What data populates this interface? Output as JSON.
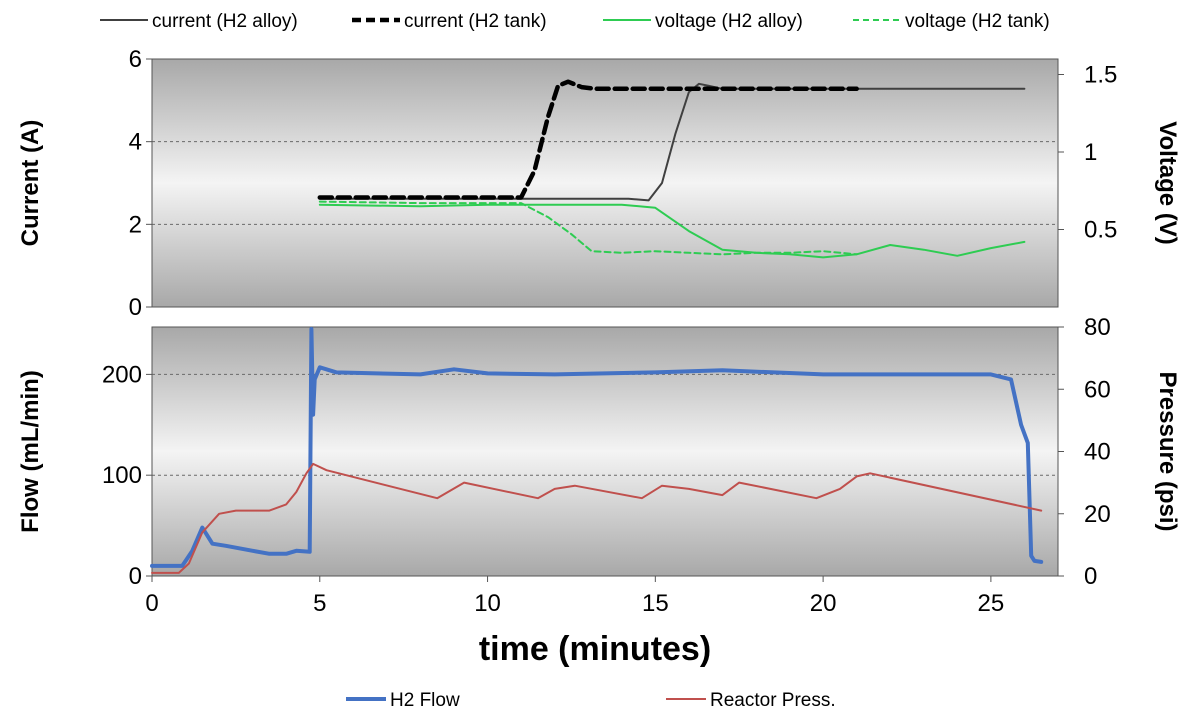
{
  "colors": {
    "current_alloy": "#404040",
    "current_tank": "#000000",
    "voltage": "#2ecc52",
    "flow": "#4472c4",
    "pressure": "#c0504d"
  },
  "chart_data": [
    {
      "type": "line",
      "panel": "top",
      "xlim": [
        0,
        27
      ],
      "ylabel": "Current (A)",
      "ylim": [
        0,
        6
      ],
      "yticks": [
        "0",
        "2",
        "4",
        "6"
      ],
      "y2label": "Voltage (V)",
      "y2lim": [
        0,
        1.6
      ],
      "y2ticks": [
        "0.5",
        "1",
        "1.5"
      ],
      "grid": "horizontal dashed",
      "legend_position": "top",
      "series": [
        {
          "name": "current (H2 alloy)",
          "axis": "left",
          "style": "solid-thin",
          "x": [
            5,
            14.2,
            14.8,
            15.2,
            15.6,
            16.0,
            16.3,
            16.6,
            17.0,
            26
          ],
          "y": [
            2.62,
            2.62,
            2.58,
            3.0,
            4.2,
            5.2,
            5.4,
            5.35,
            5.28,
            5.28
          ]
        },
        {
          "name": "current (H2 tank)",
          "axis": "left",
          "style": "dashed-thick",
          "x": [
            5,
            11.0,
            11.4,
            11.8,
            12.1,
            12.4,
            12.8,
            13.2,
            21
          ],
          "y": [
            2.65,
            2.65,
            3.3,
            4.6,
            5.35,
            5.45,
            5.32,
            5.28,
            5.28
          ]
        },
        {
          "name": "voltage (H2 alloy)",
          "axis": "right",
          "style": "solid",
          "x": [
            5,
            8,
            10,
            12,
            14,
            15,
            16,
            17,
            18,
            19,
            20,
            21,
            22,
            23,
            24,
            25,
            26
          ],
          "y": [
            0.66,
            0.65,
            0.66,
            0.66,
            0.66,
            0.64,
            0.49,
            0.37,
            0.35,
            0.34,
            0.32,
            0.34,
            0.4,
            0.37,
            0.33,
            0.38,
            0.42
          ]
        },
        {
          "name": "voltage (H2 tank)",
          "axis": "right",
          "style": "dashed",
          "x": [
            5,
            8,
            11,
            11.8,
            12.5,
            13.1,
            14,
            15,
            16,
            17,
            18,
            19,
            20,
            21
          ],
          "y": [
            0.68,
            0.67,
            0.67,
            0.58,
            0.47,
            0.36,
            0.35,
            0.36,
            0.35,
            0.34,
            0.35,
            0.35,
            0.36,
            0.34
          ]
        }
      ]
    },
    {
      "type": "line",
      "panel": "bottom",
      "xlabel": "time (minutes)",
      "xlim": [
        0,
        27
      ],
      "xticks": [
        "0",
        "5",
        "10",
        "15",
        "20",
        "25"
      ],
      "ylabel": "Flow (mL/min)",
      "ylim": [
        0,
        247
      ],
      "yticks": [
        "0",
        "100",
        "200"
      ],
      "y2label": "Pressure (psi)",
      "y2lim": [
        0,
        80
      ],
      "y2ticks": [
        "0",
        "20",
        "40",
        "60",
        "80"
      ],
      "grid": "horizontal dashed",
      "legend_position": "bottom",
      "series": [
        {
          "name": "H2 Flow",
          "axis": "left",
          "x": [
            0,
            0.9,
            1.0,
            1.2,
            1.5,
            1.8,
            2.2,
            3.0,
            3.5,
            4.0,
            4.3,
            4.7,
            4.75,
            4.8,
            4.85,
            5.0,
            5.5,
            8,
            9,
            10,
            12,
            15,
            17,
            20,
            25,
            25.6,
            25.9,
            26.1,
            26.2,
            26.3,
            26.5
          ],
          "y": [
            10,
            10,
            15,
            25,
            48,
            32,
            30,
            25,
            22,
            22,
            25,
            24,
            245,
            160,
            195,
            207,
            202,
            200,
            205,
            201,
            200,
            202,
            204,
            200,
            200,
            195,
            150,
            132,
            20,
            15,
            14
          ]
        },
        {
          "name": "Reactor Press.",
          "axis": "right",
          "x": [
            0,
            0.8,
            1.1,
            1.5,
            2.0,
            2.5,
            3.0,
            3.5,
            4.0,
            4.3,
            4.6,
            4.8,
            5.2,
            8.5,
            9.3,
            11.5,
            12.0,
            12.6,
            14.6,
            15.2,
            16.0,
            17.0,
            17.5,
            19.8,
            20.5,
            21.0,
            21.4,
            26.5
          ],
          "y": [
            1,
            1,
            4,
            14,
            20,
            21,
            21,
            21,
            23,
            27,
            33,
            36,
            34,
            25,
            30,
            25,
            28,
            29,
            25,
            29,
            28,
            26,
            30,
            25,
            28,
            32,
            33,
            21
          ]
        }
      ]
    }
  ]
}
